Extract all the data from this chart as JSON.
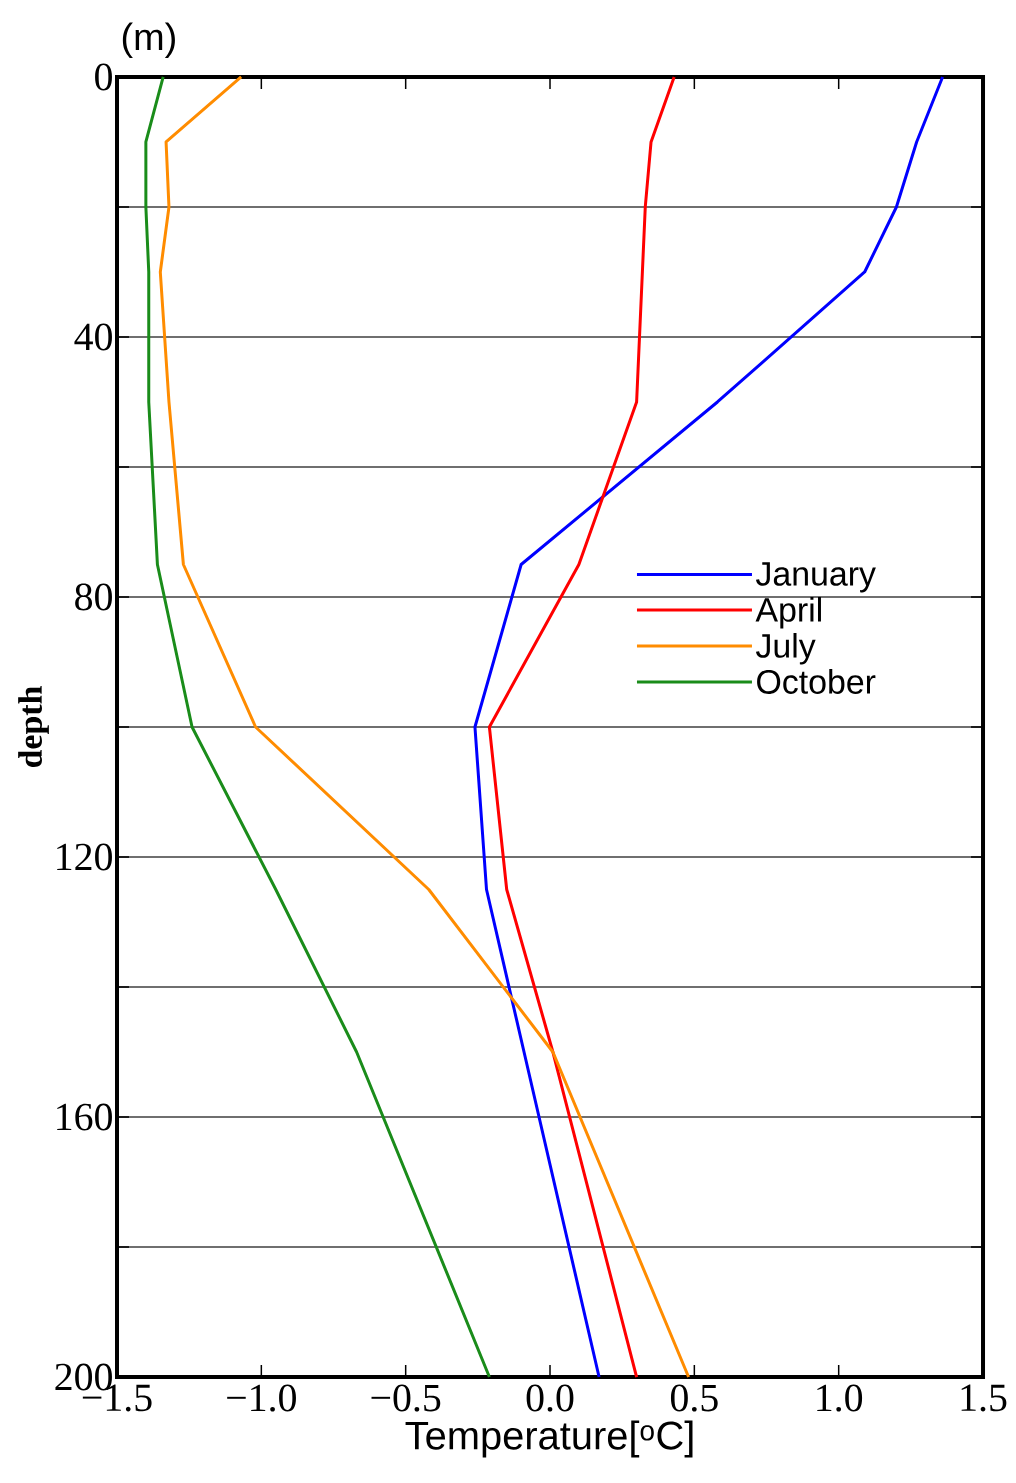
{
  "chart_data": {
    "type": "line",
    "xlabel": "Temperature[$^{o}$C]",
    "ylabel": "depth",
    "annotations": [
      "(m)"
    ],
    "series": [
      {
        "name": "January",
        "color": "#0000ff",
        "x": [
          1.36,
          1.27,
          1.2,
          1.09,
          0.58,
          -0.1,
          -0.26,
          -0.22,
          -0.09,
          0.17
        ],
        "values": [
          0,
          10,
          20,
          30,
          50,
          75,
          100,
          125,
          150,
          200
        ]
      },
      {
        "name": "April",
        "color": "#ff0000",
        "x": [
          0.43,
          0.35,
          0.33,
          0.32,
          0.3,
          0.1,
          -0.21,
          -0.15,
          0.01,
          0.3
        ],
        "values": [
          0,
          10,
          20,
          30,
          50,
          75,
          100,
          125,
          150,
          200
        ]
      },
      {
        "name": "July",
        "color": "#ff8c00",
        "x": [
          -1.07,
          -1.33,
          -1.32,
          -1.35,
          -1.32,
          -1.27,
          -1.02,
          -0.42,
          0.01,
          0.48
        ],
        "values": [
          0,
          10,
          20,
          30,
          50,
          75,
          100,
          125,
          150,
          200
        ]
      },
      {
        "name": "October",
        "color": "#1a8c1a",
        "x": [
          -1.34,
          -1.4,
          -1.4,
          -1.39,
          -1.39,
          -1.36,
          -1.24,
          -0.95,
          -0.67,
          -0.21
        ],
        "values": [
          0,
          10,
          20,
          30,
          50,
          75,
          100,
          125,
          150,
          200
        ]
      }
    ],
    "xlim": [
      -1.5,
      1.5
    ],
    "ylim": [
      200,
      0
    ],
    "xticks": [
      {
        "value": -1.5,
        "label": "−1.5"
      },
      {
        "value": -1.0,
        "label": "−1.0"
      },
      {
        "value": -0.5,
        "label": "−0.5"
      },
      {
        "value": 0,
        "label": "0.0"
      },
      {
        "value": 0.5,
        "label": "0.5"
      },
      {
        "value": 1.0,
        "label": "1.0"
      },
      {
        "value": 1.5,
        "label": "1.5"
      }
    ],
    "yticks": [
      0,
      {
        "value": 20,
        "label": null
      },
      40,
      {
        "value": 60,
        "label": null
      },
      80,
      {
        "value": 100,
        "label": null
      },
      120,
      {
        "value": 140,
        "label": null
      },
      160,
      {
        "value": 180,
        "label": null
      },
      200
    ],
    "grid": "y",
    "legend": "right",
    "line_style": "solid",
    "marker": "none"
  }
}
